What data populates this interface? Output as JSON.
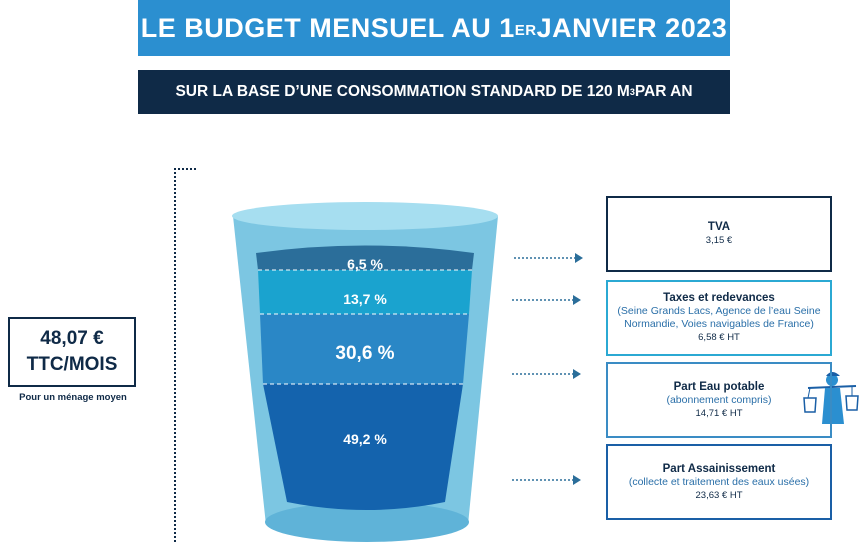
{
  "title": {
    "main": "LE BUDGET MENSUEL AU 1",
    "sup": "ER",
    "end": " JANVIER 2023"
  },
  "subtitle": {
    "main": "SUR LA BASE D’UNE CONSOMMATION STANDARD DE 120 M",
    "sup": "3",
    "end": " PAR AN"
  },
  "total": {
    "amount": "48,07 €",
    "unit": "TTC/MOIS",
    "caption": "Pour un ménage moyen"
  },
  "layers": [
    {
      "pct": "6,5 %",
      "color": "#2b6e9a"
    },
    {
      "pct": "13,7 %",
      "color": "#1aa3cf"
    },
    {
      "pct": "30,6 %",
      "color": "#2a87c6"
    },
    {
      "pct": "49,2 %",
      "color": "#1463ad"
    }
  ],
  "boxes": [
    {
      "label": "TVA",
      "detail": "",
      "amount": "3,15 €"
    },
    {
      "label": "Taxes et redevances",
      "detail": "(Seine Grands Lacs,  Agence de l’eau Seine Normandie, Voies navigables de France)",
      "amount": "6,58 € HT"
    },
    {
      "label": "Part Eau potable",
      "detail": "(abonnement compris)",
      "amount": "14,71 € HT"
    },
    {
      "label": "Part Assainissement",
      "detail": "(collecte et traitement des eaux usées)",
      "amount": "23,63 € HT"
    }
  ],
  "colors": {
    "accent": "#2b8fd0",
    "navy": "#0f2a47",
    "glass": "#7cc6e2"
  }
}
